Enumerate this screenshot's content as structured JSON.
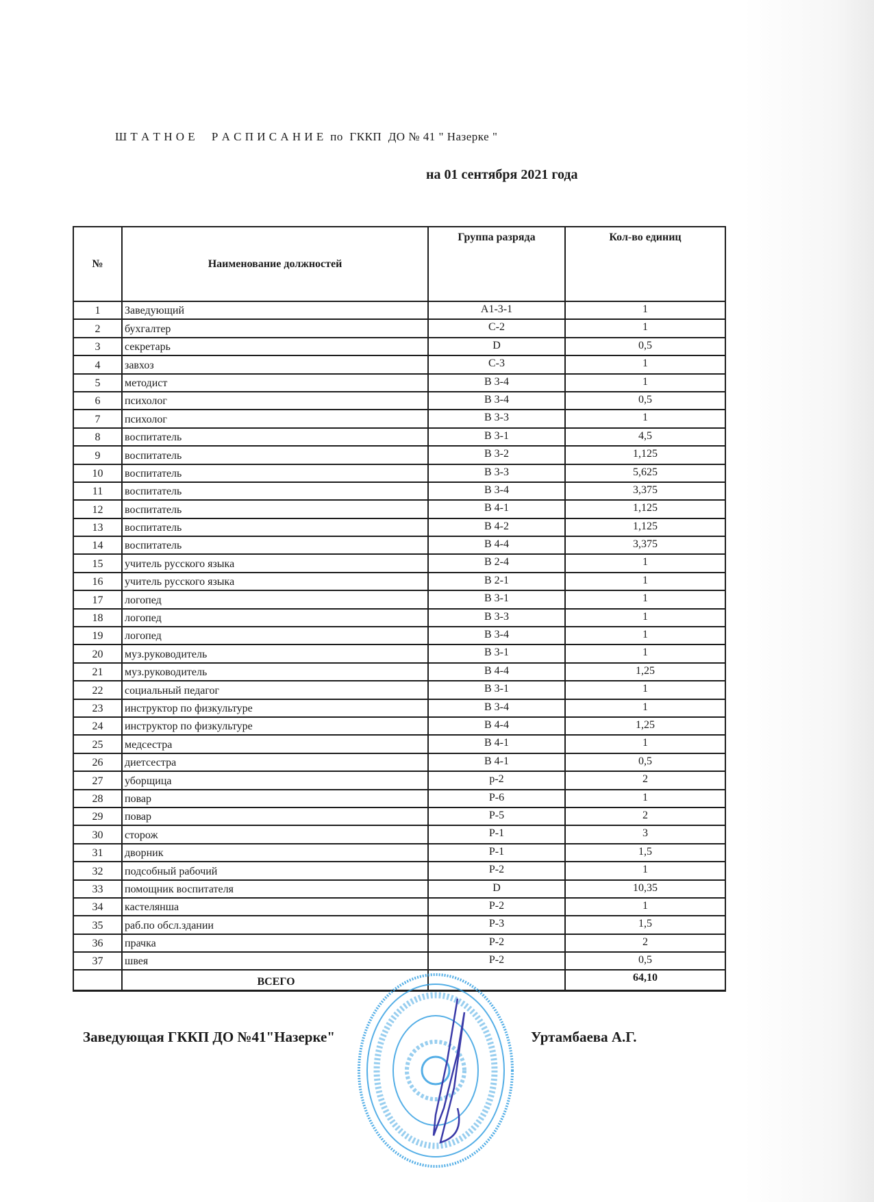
{
  "document": {
    "title": "Ш Т А Т Н О Е     Р А С П И С А Н И Е  по  ГККП  ДО № 41 \" Назерке \"",
    "date_line": "на  01 сентября 2021 года",
    "table": {
      "headers": [
        "№",
        "Наименование должностей",
        "Группа разряда",
        "Кол-во единиц"
      ],
      "rows": [
        {
          "n": "1",
          "name": "Заведующий",
          "group": "А1-3-1",
          "qty": "1"
        },
        {
          "n": "2",
          "name": "бухгалтер",
          "group": "С-2",
          "qty": "1"
        },
        {
          "n": "3",
          "name": "секретарь",
          "group": "D",
          "qty": "0,5"
        },
        {
          "n": "4",
          "name": "завхоз",
          "group": "С-3",
          "qty": "1"
        },
        {
          "n": "5",
          "name": "методист",
          "group": "В 3-4",
          "qty": "1"
        },
        {
          "n": "6",
          "name": "психолог",
          "group": "В 3-4",
          "qty": "0,5"
        },
        {
          "n": "7",
          "name": "психолог",
          "group": "В 3-3",
          "qty": "1"
        },
        {
          "n": "8",
          "name": "воспитатель",
          "group": "В 3-1",
          "qty": "4,5"
        },
        {
          "n": "9",
          "name": "воспитатель",
          "group": "В 3-2",
          "qty": "1,125"
        },
        {
          "n": "10",
          "name": "воспитатель",
          "group": "В 3-3",
          "qty": "5,625"
        },
        {
          "n": "11",
          "name": "воспитатель",
          "group": "В 3-4",
          "qty": "3,375"
        },
        {
          "n": "12",
          "name": "воспитатель",
          "group": "В 4-1",
          "qty": "1,125"
        },
        {
          "n": "13",
          "name": "воспитатель",
          "group": "В 4-2",
          "qty": "1,125"
        },
        {
          "n": "14",
          "name": "воспитатель",
          "group": "В 4-4",
          "qty": "3,375"
        },
        {
          "n": "15",
          "name": "учитель русского языка",
          "group": "В 2-4",
          "qty": "1"
        },
        {
          "n": "16",
          "name": "учитель русского языка",
          "group": "В 2-1",
          "qty": "1"
        },
        {
          "n": "17",
          "name": "логопед",
          "group": "В 3-1",
          "qty": "1"
        },
        {
          "n": "18",
          "name": "логопед",
          "group": "В 3-3",
          "qty": "1"
        },
        {
          "n": "19",
          "name": "логопед",
          "group": "В 3-4",
          "qty": "1"
        },
        {
          "n": "20",
          "name": "муз.руководитель",
          "group": "В 3-1",
          "qty": "1"
        },
        {
          "n": "21",
          "name": "муз.руководитель",
          "group": "В 4-4",
          "qty": "1,25"
        },
        {
          "n": "22",
          "name": "социальный педагог",
          "group": "В 3-1",
          "qty": "1"
        },
        {
          "n": "23",
          "name": "инструктор по физкультуре",
          "group": "В 3-4",
          "qty": "1"
        },
        {
          "n": "24",
          "name": "инструктор по физкультуре",
          "group": "В 4-4",
          "qty": "1,25"
        },
        {
          "n": "25",
          "name": " медсестра",
          "group": "В 4-1",
          "qty": "1"
        },
        {
          "n": "26",
          "name": "диетсестра",
          "group": "В 4-1",
          "qty": "0,5"
        },
        {
          "n": "27",
          "name": "уборщица",
          "group": "р-2",
          "qty": "2"
        },
        {
          "n": "28",
          "name": "повар",
          "group": "Р-6",
          "qty": "1"
        },
        {
          "n": "29",
          "name": "повар",
          "group": "Р-5",
          "qty": "2"
        },
        {
          "n": "30",
          "name": "сторож",
          "group": "Р-1",
          "qty": "3"
        },
        {
          "n": "31",
          "name": "дворник",
          "group": "Р-1",
          "qty": "1,5"
        },
        {
          "n": "32",
          "name": "подсобный рабочий",
          "group": "Р-2",
          "qty": "1"
        },
        {
          "n": "33",
          "name": "помощник воспитателя",
          "group": "D",
          "qty": "10,35"
        },
        {
          "n": "34",
          "name": "кастелянша",
          "group": "Р-2",
          "qty": "1"
        },
        {
          "n": "35",
          "name": "раб.по обсл.здании",
          "group": "Р-3",
          "qty": "1,5"
        },
        {
          "n": "36",
          "name": "прачка",
          "group": "Р-2",
          "qty": "2"
        },
        {
          "n": "37",
          "name": "швея",
          "group": "Р-2",
          "qty": "0,5"
        }
      ],
      "total_label": "ВСЕГО",
      "total_value": "64,10"
    },
    "signature": {
      "position": "Заведующая   ГККП  ДО  №41\"Назерке\"",
      "name": "Уртамбаева А.Г."
    },
    "stamp_color": "#2a9be0",
    "signature_ink_color": "#3a3aa8"
  }
}
